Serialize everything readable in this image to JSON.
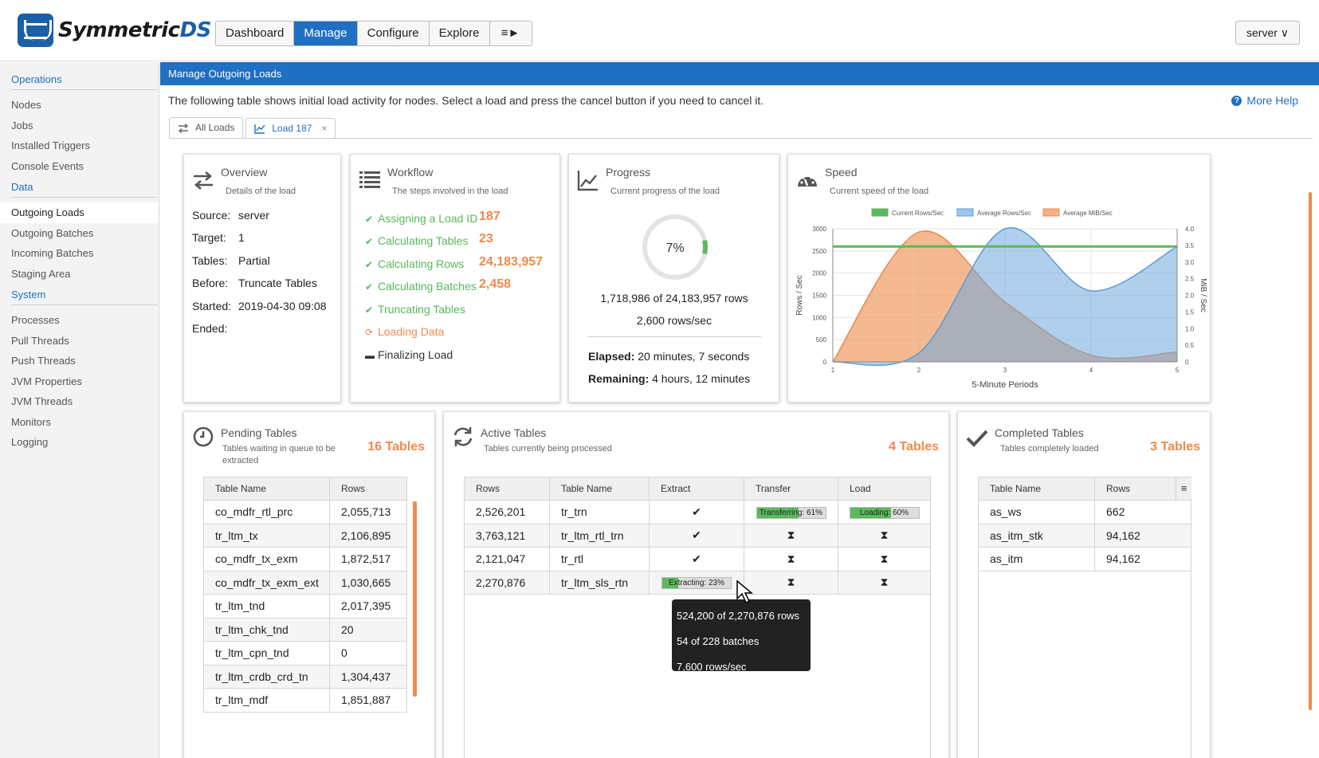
{
  "brand": {
    "name_main": "Symmetric",
    "name_accent": "DS"
  },
  "nav": {
    "items": [
      "Dashboard",
      "Manage",
      "Configure",
      "Explore",
      "≡►"
    ],
    "active": "Manage"
  },
  "server_menu": {
    "label": "server ∨"
  },
  "sidebar": {
    "sections": [
      {
        "title": "Operations",
        "items": [
          "Nodes",
          "Jobs",
          "Installed Triggers",
          "Console Events"
        ]
      },
      {
        "title": "Data",
        "items": [
          "Outgoing Loads",
          "Outgoing Batches",
          "Incoming Batches",
          "Staging Area"
        ]
      },
      {
        "title": "System",
        "items": [
          "Processes",
          "Pull Threads",
          "Push Threads",
          "JVM Properties",
          "JVM Threads",
          "Monitors",
          "Logging"
        ]
      }
    ],
    "active_item": "Outgoing Loads"
  },
  "page": {
    "title": "Manage Outgoing Loads",
    "intro": "The following table shows initial load activity for nodes. Select a load and press the cancel button if you need to cancel it.",
    "help_label": "More Help",
    "tabs": [
      "All Loads",
      "Load 187"
    ],
    "close_glyph": "×"
  },
  "overview": {
    "title": "Overview",
    "subtitle": "Details of the load",
    "rows": [
      {
        "k": "Source:",
        "v": "server"
      },
      {
        "k": "Target:",
        "v": "1"
      },
      {
        "k": "Tables:",
        "v": "Partial"
      },
      {
        "k": "Before:",
        "v": "Truncate Tables"
      },
      {
        "k": "Started:",
        "v": "2019-04-30 09:08"
      },
      {
        "k": "Ended:",
        "v": ""
      }
    ]
  },
  "workflow": {
    "title": "Workflow",
    "subtitle": "The steps involved in the load",
    "steps": [
      {
        "label": "Assigning a Load ID",
        "value": "187",
        "state": "done"
      },
      {
        "label": "Calculating Tables",
        "value": "23",
        "state": "done"
      },
      {
        "label": "Calculating Rows",
        "value": "24,183,957",
        "state": "done"
      },
      {
        "label": "Calculating Batches",
        "value": "2,458",
        "state": "done"
      },
      {
        "label": "Truncating Tables",
        "value": "",
        "state": "done"
      },
      {
        "label": "Loading Data",
        "value": "",
        "state": "current"
      },
      {
        "label": "Finalizing Load",
        "value": "",
        "state": "todo"
      }
    ]
  },
  "progress": {
    "title": "Progress",
    "subtitle": "Current progress of the load",
    "percent_label": "7%",
    "percent": 7,
    "rows_text": "1,718,986 of 24,183,957 rows",
    "rate_text": "2,600 rows/sec",
    "elapsed_label": "Elapsed:",
    "elapsed": "20 minutes, 7 seconds",
    "remaining_label": "Remaining:",
    "remaining": "4 hours, 12 minutes"
  },
  "speed": {
    "title": "Speed",
    "subtitle": "Current speed of the load"
  },
  "chart_data": {
    "type": "area",
    "xlabel": "5-Minute Periods",
    "ylabel": "Rows / Sec",
    "y2label": "MiB / Sec",
    "x": [
      1,
      2,
      3,
      4,
      5
    ],
    "ylim": [
      0,
      3000
    ],
    "y2lim": [
      0,
      4.0
    ],
    "yticks": [
      0,
      500,
      1000,
      1500,
      2000,
      2500,
      3000
    ],
    "y2ticks": [
      0,
      0.5,
      1.0,
      1.5,
      2.0,
      2.5,
      3.0,
      3.5,
      4.0
    ],
    "legend_position": "top",
    "series": [
      {
        "name": "Current Rows/Sec",
        "axis": "left",
        "color": "#5cb85c",
        "x": [
          1,
          5
        ],
        "values": [
          2600,
          2600
        ]
      },
      {
        "name": "Average Rows/Sec",
        "axis": "left",
        "color": "#6fa8dc",
        "x": [
          1,
          2,
          3,
          4,
          5
        ],
        "values": [
          0,
          200,
          3000,
          1600,
          2600
        ]
      },
      {
        "name": "Average MiB/Sec",
        "axis": "right",
        "color": "#f0a26b",
        "x": [
          1,
          2,
          3,
          4,
          5
        ],
        "values": [
          0,
          3.9,
          1.8,
          0.2,
          0.3
        ]
      }
    ]
  },
  "pending": {
    "title": "Pending Tables",
    "subtitle": "Tables waiting in queue to be extracted",
    "count": "16 Tables",
    "columns": [
      "Table Name",
      "Rows"
    ],
    "rows": [
      [
        "co_mdfr_rtl_prc",
        "2,055,713"
      ],
      [
        "tr_ltm_tx",
        "2,106,895"
      ],
      [
        "co_mdfr_tx_exm",
        "1,872,517"
      ],
      [
        "co_mdfr_tx_exm_ext",
        "1,030,665"
      ],
      [
        "tr_ltm_tnd",
        "2,017,395"
      ],
      [
        "tr_ltm_chk_tnd",
        "20"
      ],
      [
        "tr_ltm_cpn_tnd",
        "0"
      ],
      [
        "tr_ltm_crdb_crd_tn",
        "1,304,437"
      ],
      [
        "tr_ltm_mdf",
        "1,851,887"
      ]
    ]
  },
  "active": {
    "title": "Active Tables",
    "subtitle": "Tables currently being processed",
    "count": "4 Tables",
    "columns": [
      "Rows",
      "Table Name",
      "Extract",
      "Transfer",
      "Load"
    ],
    "rows": [
      {
        "rows": "2,526,201",
        "name": "tr_trn",
        "extract": "✔",
        "transfer_label": "Transferring: 61%",
        "transfer_pct": 61,
        "load_label": "Loading: 60%",
        "load_pct": 60
      },
      {
        "rows": "3,763,121",
        "name": "tr_ltm_rtl_trn",
        "extract": "✔",
        "transfer": "⧗",
        "load": "⧗"
      },
      {
        "rows": "2,121,047",
        "name": "tr_rtl",
        "extract": "✔",
        "transfer": "⧗",
        "load": "⧗"
      },
      {
        "rows": "2,270,876",
        "name": "tr_ltm_sls_rtn",
        "extract_label": "Extracting: 23%",
        "extract_pct": 23,
        "transfer": "⧗",
        "load": "⧗"
      }
    ],
    "tooltip": [
      "524,200 of 2,270,876 rows",
      "54 of 228 batches",
      "7,600 rows/sec"
    ]
  },
  "completed": {
    "title": "Completed Tables",
    "subtitle": "Tables completely loaded",
    "count": "3 Tables",
    "columns": [
      "Table Name",
      "Rows"
    ],
    "menu_glyph": "≡",
    "rows": [
      [
        "as_ws",
        "662"
      ],
      [
        "as_itm_stk",
        "94,162"
      ],
      [
        "as_itm",
        "94,162"
      ]
    ]
  }
}
